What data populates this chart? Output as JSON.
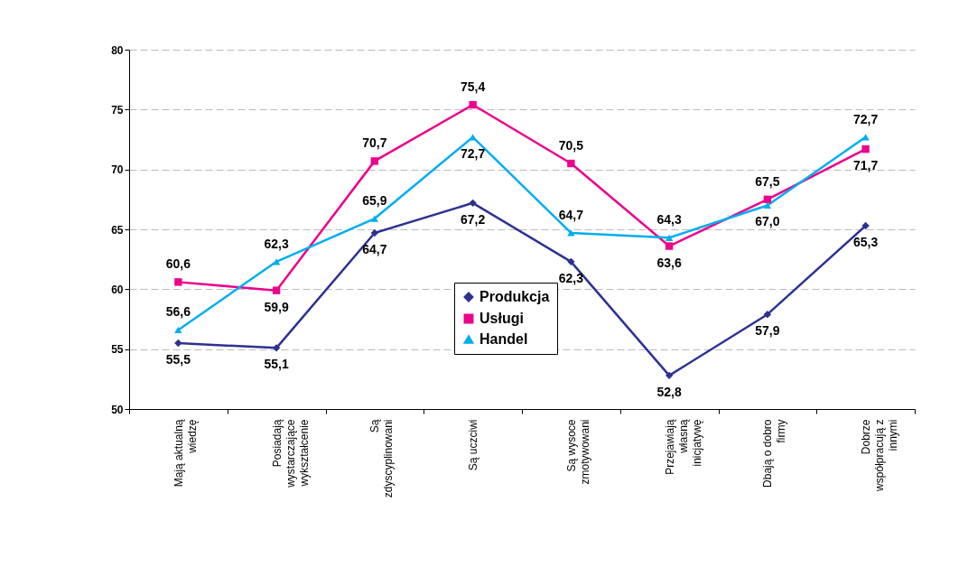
{
  "chart_data": {
    "type": "line",
    "categories": [
      "Mają aktualną wiedzę",
      "Posiadają wystarczające wykształcenie",
      "Są zdyscyplinowani",
      "Są uczciwi",
      "Są wysoce zmotywowani",
      "Przejawiają własną inicjatywę",
      "Dbają o dobro firmy",
      "Dobrze współpracują z innymi"
    ],
    "series": [
      {
        "name": "Produkcja",
        "color": "#2e3192",
        "marker": "diamond",
        "values": [
          55.5,
          55.1,
          64.7,
          67.2,
          62.3,
          52.8,
          57.9,
          65.3
        ],
        "value_labels": [
          "55,5",
          "55,1",
          "64,7",
          "67,2",
          "62,3",
          "52,8",
          "57,9",
          "65,3"
        ]
      },
      {
        "name": "Usługi",
        "color": "#ec008c",
        "marker": "square",
        "values": [
          60.6,
          59.9,
          70.7,
          75.4,
          70.5,
          63.6,
          67.5,
          71.7
        ],
        "value_labels": [
          "60,6",
          "59,9",
          "70,7",
          "75,4",
          "70,5",
          "63,6",
          "67,5",
          "71,7"
        ]
      },
      {
        "name": "Handel",
        "color": "#00aeef",
        "marker": "triangle",
        "values": [
          56.6,
          62.3,
          65.9,
          72.7,
          64.7,
          64.3,
          67.0,
          72.7
        ],
        "value_labels": [
          "56,6",
          "62,3",
          "65,9",
          "72,7",
          "64,7",
          "64,3",
          "67,0",
          "72,7"
        ]
      }
    ],
    "ylim": [
      50,
      80
    ],
    "yticks": [
      50,
      55,
      60,
      65,
      70,
      75,
      80
    ],
    "grid": "y",
    "legend": "bottom"
  }
}
